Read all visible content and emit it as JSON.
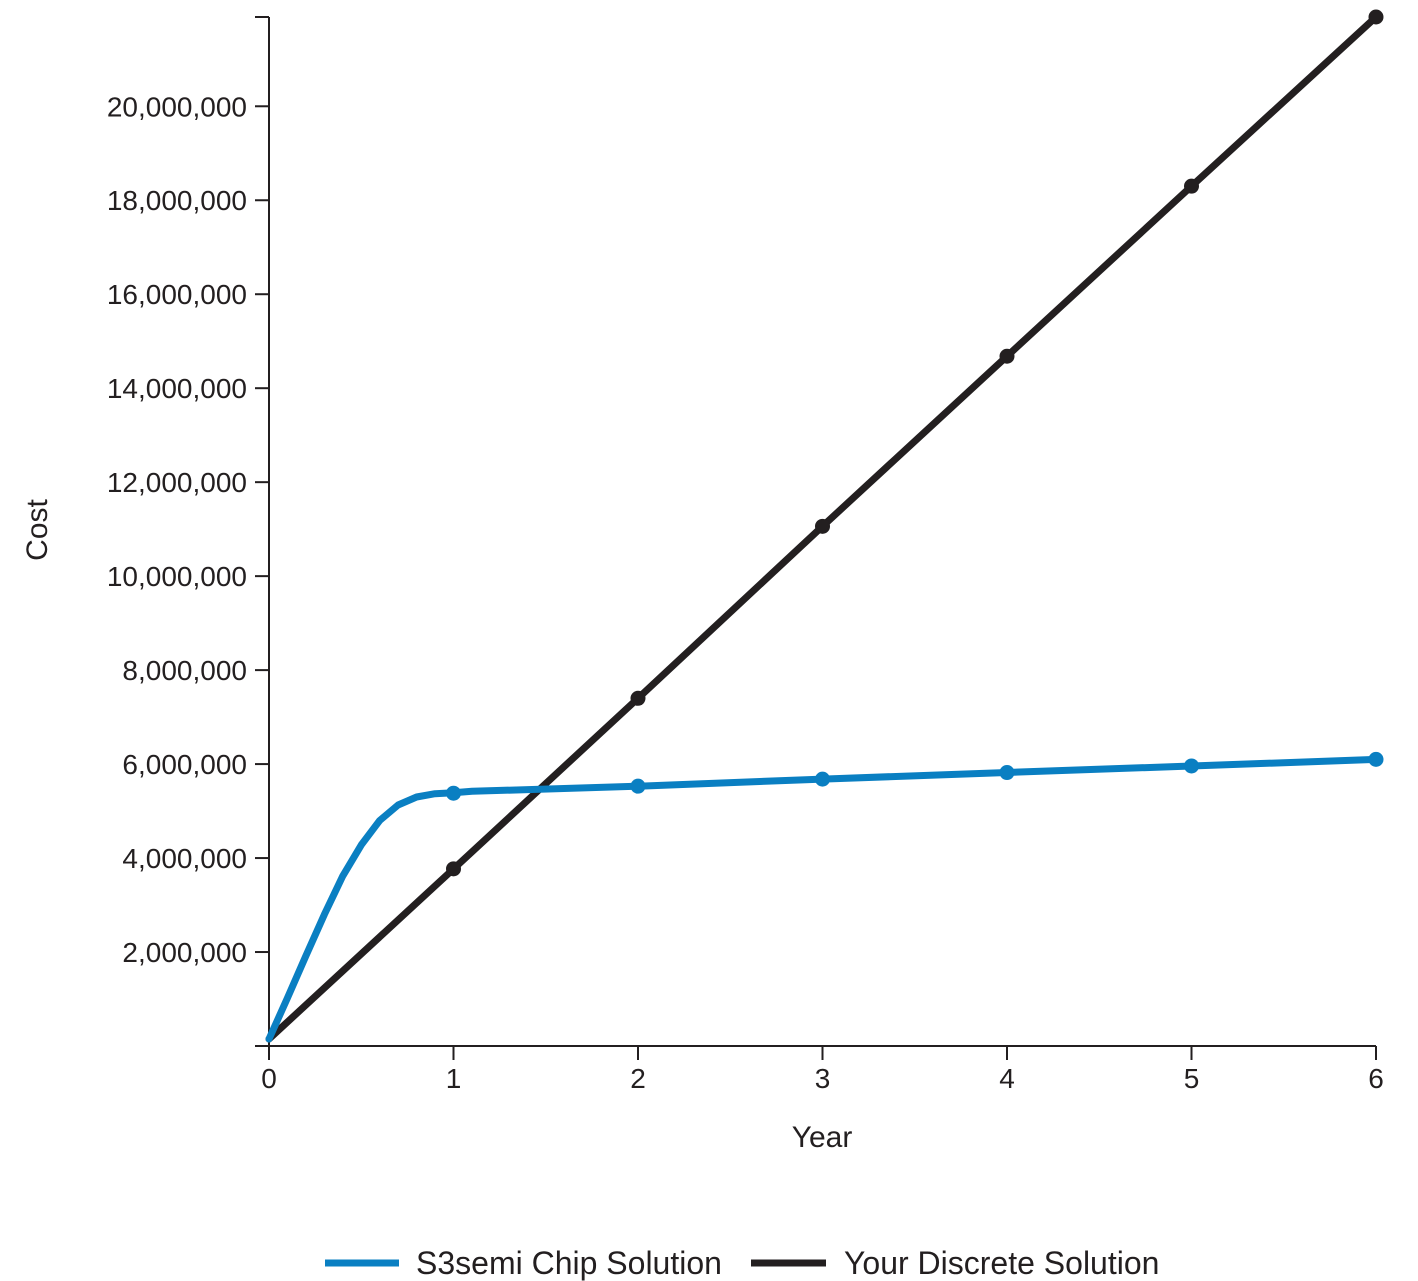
{
  "chart_data": {
    "type": "line",
    "title": "",
    "xlabel": "Year",
    "ylabel": "Cost",
    "xlim": [
      0,
      6
    ],
    "ylim": [
      0,
      21900000
    ],
    "x_ticks": [
      "0",
      "1",
      "2",
      "3",
      "4",
      "5",
      "6"
    ],
    "y_ticks": [
      "2,000,000",
      "4,000,000",
      "6,000,000",
      "8,000,000",
      "10,000,000",
      "12,000,000",
      "14,000,000",
      "16,000,000",
      "18,000,000",
      "20,000,000"
    ],
    "y_tick_values": [
      2000000,
      4000000,
      6000000,
      8000000,
      10000000,
      12000000,
      14000000,
      16000000,
      18000000,
      20000000
    ],
    "grid": false,
    "legend_position": "bottom",
    "series": [
      {
        "name": "S3semi Chip Solution",
        "color": "#0a7fc2",
        "x": [
          0,
          1,
          2,
          3,
          4,
          5,
          6
        ],
        "values": [
          150000,
          5380000,
          5530000,
          5680000,
          5820000,
          5960000,
          6100000
        ],
        "curve_x": [
          0,
          0.1,
          0.2,
          0.3,
          0.4,
          0.5,
          0.6,
          0.7,
          0.8,
          0.9,
          1.0,
          1.1
        ],
        "curve_values": [
          150000,
          1020000,
          1920000,
          2800000,
          3620000,
          4280000,
          4800000,
          5130000,
          5300000,
          5370000,
          5390000,
          5420000
        ]
      },
      {
        "name": "Your Discrete Solution",
        "color": "#231f20",
        "x": [
          0,
          1,
          2,
          3,
          4,
          5,
          6
        ],
        "values": [
          150000,
          3770000,
          7400000,
          11060000,
          14680000,
          18300000,
          21900000
        ]
      }
    ]
  }
}
